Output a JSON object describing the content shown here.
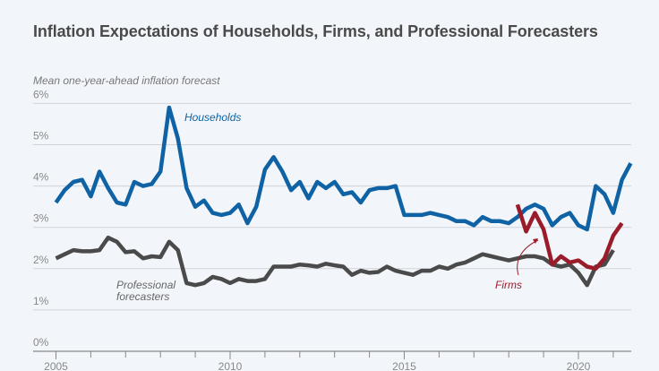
{
  "chart_data": {
    "type": "line",
    "title": "Inflation Expectations of Households, Firms, and Professional Forecasters",
    "ylabel": "Mean one-year-ahead inflation forecast",
    "xlabel": "",
    "ylim": [
      0,
      6
    ],
    "yticks": [
      "0%",
      "1%",
      "2%",
      "3%",
      "4%",
      "5%",
      "6%"
    ],
    "ytick_values": [
      0,
      1,
      2,
      3,
      4,
      5,
      6
    ],
    "xticks": [
      "2005",
      "2010",
      "2015",
      "2020"
    ],
    "xtick_values": [
      2005,
      2010,
      2015,
      2020
    ],
    "xlim": [
      2004.7,
      2021.6
    ],
    "grid": true,
    "legend": "inline-labels",
    "series": [
      {
        "name": "Households",
        "color": "#0f62a4",
        "x_start": 2005.0,
        "x_step": 0.25,
        "values": [
          3.6,
          3.9,
          4.1,
          4.15,
          3.75,
          4.35,
          3.95,
          3.6,
          3.55,
          4.1,
          4.0,
          4.05,
          4.35,
          5.9,
          5.15,
          3.95,
          3.5,
          3.65,
          3.35,
          3.3,
          3.35,
          3.55,
          3.1,
          3.5,
          4.4,
          4.7,
          4.35,
          3.9,
          4.1,
          3.7,
          4.1,
          3.95,
          4.1,
          3.8,
          3.85,
          3.6,
          3.9,
          3.95,
          3.95,
          4.0,
          3.3,
          3.3,
          3.3,
          3.35,
          3.3,
          3.25,
          3.15,
          3.15,
          3.05,
          3.25,
          3.15,
          3.15,
          3.1,
          3.25,
          3.45,
          3.55,
          3.45,
          3.05,
          3.25,
          3.35,
          3.05,
          2.95,
          4.0,
          3.8,
          3.35,
          4.15,
          4.55
        ]
      },
      {
        "name": "Professional forecasters",
        "color": "#4a4a4a",
        "x_start": 2005.0,
        "x_step": 0.25,
        "values": [
          2.25,
          2.35,
          2.45,
          2.42,
          2.42,
          2.45,
          2.75,
          2.65,
          2.4,
          2.42,
          2.25,
          2.3,
          2.28,
          2.65,
          2.45,
          1.65,
          1.6,
          1.65,
          1.8,
          1.75,
          1.65,
          1.75,
          1.7,
          1.7,
          1.75,
          2.05,
          2.05,
          2.05,
          2.1,
          2.08,
          2.05,
          2.12,
          2.08,
          2.05,
          1.85,
          1.95,
          1.9,
          1.92,
          2.05,
          1.95,
          1.9,
          1.85,
          1.95,
          1.95,
          2.05,
          2.0,
          2.1,
          2.15,
          2.25,
          2.35,
          2.3,
          2.25,
          2.2,
          2.25,
          2.3,
          2.3,
          2.25,
          2.1,
          2.05,
          2.1,
          1.9,
          1.6,
          2.05,
          2.1,
          2.45
        ]
      },
      {
        "name": "Firms",
        "color": "#9a1b2a",
        "x_start": 2018.25,
        "x_step": 0.25,
        "values": [
          3.55,
          2.9,
          3.35,
          2.95,
          2.1,
          2.3,
          2.15,
          2.2,
          2.05,
          2.0,
          2.25,
          2.8,
          3.1
        ]
      }
    ],
    "labels": {
      "households": "Households",
      "firms": "Firms",
      "pros_line1": "Professional",
      "pros_line2": "forecasters"
    }
  }
}
